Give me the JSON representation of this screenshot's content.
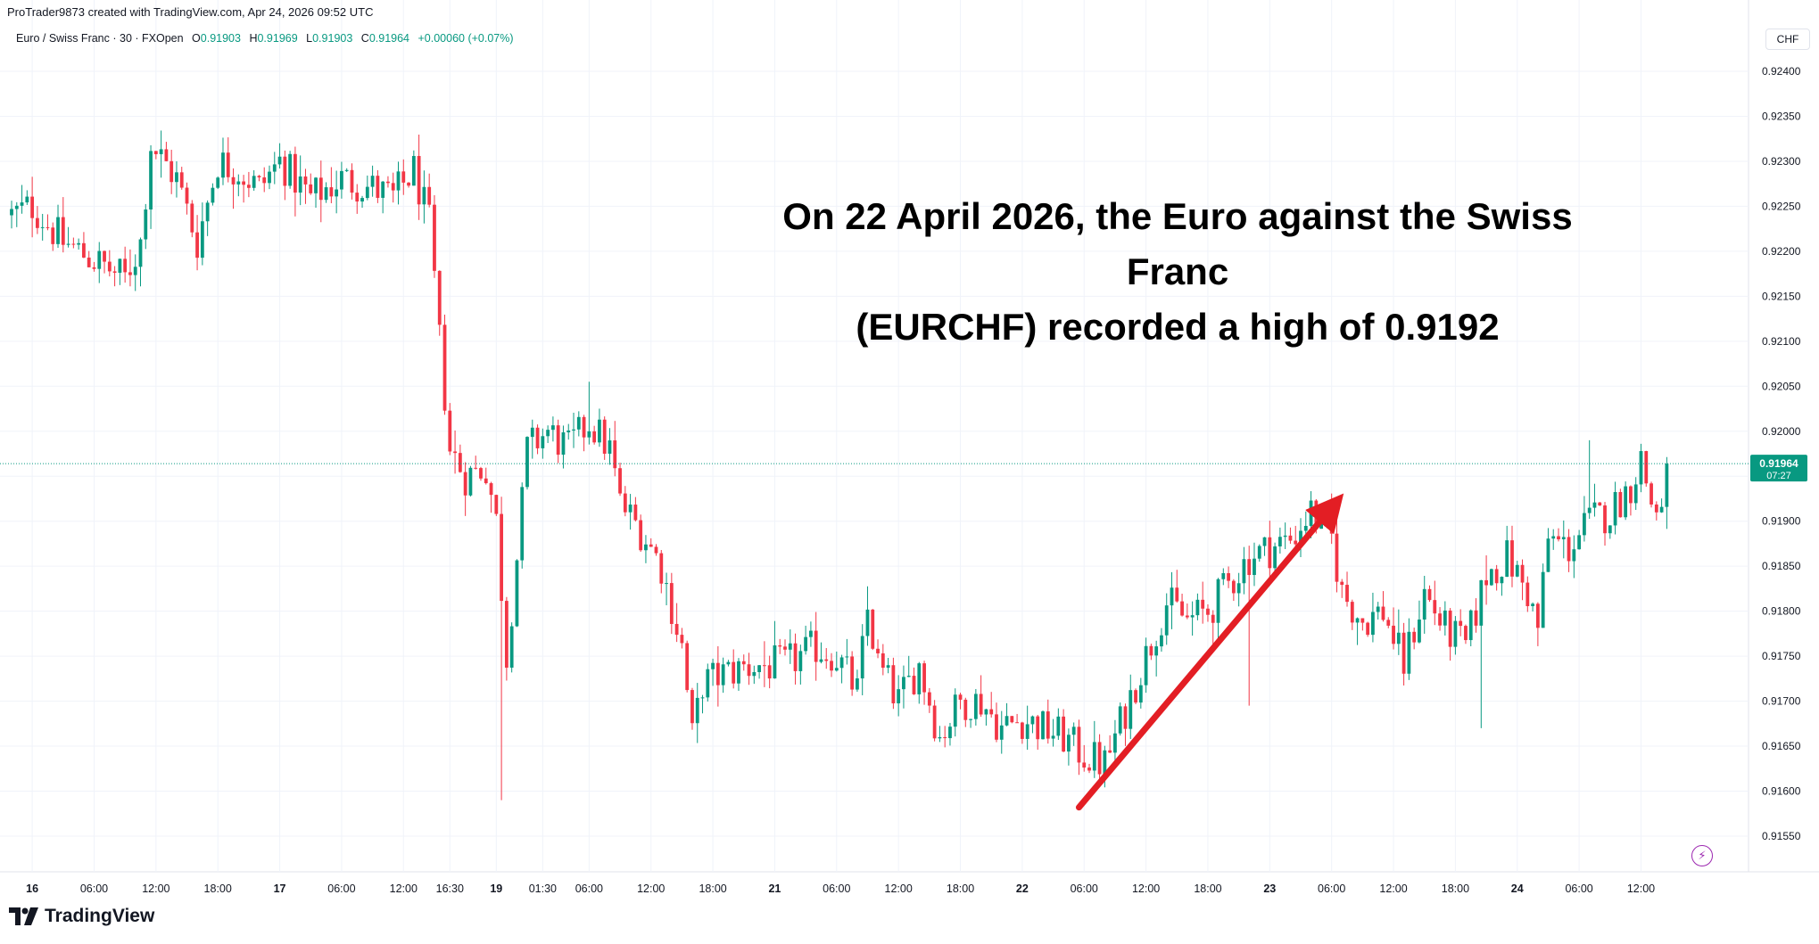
{
  "credit": "ProTrader9873 created with TradingView.com, Apr 24, 2026 09:52 UTC",
  "legend": {
    "symbol": "Euro / Swiss Franc · 30 · FXOpen",
    "o_label": "O",
    "o_value": "0.91903",
    "h_label": "H",
    "h_value": "0.91969",
    "l_label": "L",
    "l_value": "0.91903",
    "c_label": "C",
    "c_value": "0.91964",
    "change": "+0.00060 (+0.07%)"
  },
  "currency": "CHF",
  "brand": "TradingView",
  "annotation": {
    "line1": "On 22 April 2026, the Euro against the Swiss Franc",
    "line2": "(EURCHF) recorded a high of 0.9192"
  },
  "colors": {
    "up": "#089981",
    "down": "#f23645",
    "arrow": "#e31e24",
    "grid": "#f0f3fa",
    "axis_text": "#131722"
  },
  "icons": {
    "lightning": "lightning-icon",
    "logo": "tradingview-logo-icon"
  },
  "chart_data": {
    "type": "candlestick",
    "title": "",
    "ylim": [
      0.9151,
      0.9243
    ],
    "y_ticks": [
      "0.92400",
      "0.92350",
      "0.92300",
      "0.92250",
      "0.92200",
      "0.92150",
      "0.92100",
      "0.92050",
      "0.92000",
      "0.91950",
      "0.91900",
      "0.91850",
      "0.91800",
      "0.91750",
      "0.91700",
      "0.91650",
      "0.91600",
      "0.91550"
    ],
    "x_ticks": [
      {
        "label": "16",
        "bar": 4
      },
      {
        "label": "06:00",
        "bar": 16
      },
      {
        "label": "12:00",
        "bar": 28
      },
      {
        "label": "18:00",
        "bar": 40
      },
      {
        "label": "17",
        "bar": 52
      },
      {
        "label": "06:00",
        "bar": 64
      },
      {
        "label": "12:00",
        "bar": 76
      },
      {
        "label": "16:30",
        "bar": 85
      },
      {
        "label": "19",
        "bar": 94
      },
      {
        "label": "01:30",
        "bar": 103
      },
      {
        "label": "06:00",
        "bar": 112
      },
      {
        "label": "12:00",
        "bar": 124
      },
      {
        "label": "18:00",
        "bar": 136
      },
      {
        "label": "21",
        "bar": 148
      },
      {
        "label": "06:00",
        "bar": 160
      },
      {
        "label": "12:00",
        "bar": 172
      },
      {
        "label": "18:00",
        "bar": 184
      },
      {
        "label": "22",
        "bar": 196
      },
      {
        "label": "06:00",
        "bar": 208
      },
      {
        "label": "12:00",
        "bar": 220
      },
      {
        "label": "18:00",
        "bar": 232
      },
      {
        "label": "23",
        "bar": 244
      },
      {
        "label": "06:00",
        "bar": 256
      },
      {
        "label": "12:00",
        "bar": 268
      },
      {
        "label": "18:00",
        "bar": 280
      },
      {
        "label": "24",
        "bar": 292
      },
      {
        "label": "06:00",
        "bar": 304
      },
      {
        "label": "12:00",
        "bar": 316
      }
    ],
    "last_price": "0.91964",
    "countdown": "07:27",
    "anchors": [
      [
        0,
        0.9224
      ],
      [
        4,
        0.9225
      ],
      [
        10,
        0.9221
      ],
      [
        16,
        0.9219
      ],
      [
        22,
        0.9217
      ],
      [
        25,
        0.9221
      ],
      [
        27,
        0.9232
      ],
      [
        32,
        0.9228
      ],
      [
        36,
        0.9221
      ],
      [
        40,
        0.923
      ],
      [
        44,
        0.9229
      ],
      [
        48,
        0.9227
      ],
      [
        52,
        0.923
      ],
      [
        58,
        0.9226
      ],
      [
        64,
        0.9228
      ],
      [
        70,
        0.9227
      ],
      [
        74,
        0.9226
      ],
      [
        78,
        0.9229
      ],
      [
        81,
        0.9223
      ],
      [
        83,
        0.921
      ],
      [
        85,
        0.9198
      ],
      [
        88,
        0.9195
      ],
      [
        92,
        0.9196
      ],
      [
        94,
        0.919
      ],
      [
        96,
        0.9175
      ],
      [
        98,
        0.9186
      ],
      [
        100,
        0.9198
      ],
      [
        104,
        0.92
      ],
      [
        108,
        0.9198
      ],
      [
        112,
        0.9201
      ],
      [
        116,
        0.9198
      ],
      [
        118,
        0.9192
      ],
      [
        122,
        0.9189
      ],
      [
        126,
        0.9185
      ],
      [
        130,
        0.9176
      ],
      [
        132,
        0.9166
      ],
      [
        134,
        0.9172
      ],
      [
        138,
        0.9173
      ],
      [
        144,
        0.9174
      ],
      [
        150,
        0.9174
      ],
      [
        156,
        0.9176
      ],
      [
        160,
        0.9175
      ],
      [
        164,
        0.9171
      ],
      [
        166,
        0.918
      ],
      [
        168,
        0.9174
      ],
      [
        172,
        0.917
      ],
      [
        176,
        0.9174
      ],
      [
        180,
        0.9166
      ],
      [
        184,
        0.917
      ],
      [
        188,
        0.917
      ],
      [
        192,
        0.9167
      ],
      [
        196,
        0.9168
      ],
      [
        200,
        0.9167
      ],
      [
        204,
        0.9166
      ],
      [
        208,
        0.9164
      ],
      [
        212,
        0.9163
      ],
      [
        216,
        0.9169
      ],
      [
        220,
        0.9175
      ],
      [
        224,
        0.9181
      ],
      [
        228,
        0.9179
      ],
      [
        232,
        0.918
      ],
      [
        236,
        0.9183
      ],
      [
        240,
        0.9186
      ],
      [
        244,
        0.9187
      ],
      [
        248,
        0.9188
      ],
      [
        252,
        0.9191
      ],
      [
        256,
        0.9188
      ],
      [
        258,
        0.9182
      ],
      [
        262,
        0.9179
      ],
      [
        266,
        0.918
      ],
      [
        270,
        0.9174
      ],
      [
        274,
        0.9182
      ],
      [
        278,
        0.9178
      ],
      [
        282,
        0.9176
      ],
      [
        286,
        0.9184
      ],
      [
        290,
        0.9186
      ],
      [
        294,
        0.9182
      ],
      [
        296,
        0.9178
      ],
      [
        298,
        0.9188
      ],
      [
        302,
        0.9187
      ],
      [
        306,
        0.919
      ],
      [
        310,
        0.9191
      ],
      [
        314,
        0.9194
      ],
      [
        316,
        0.9197
      ],
      [
        318,
        0.9192
      ],
      [
        320,
        0.9191
      ],
      [
        321,
        0.9196
      ]
    ]
  }
}
